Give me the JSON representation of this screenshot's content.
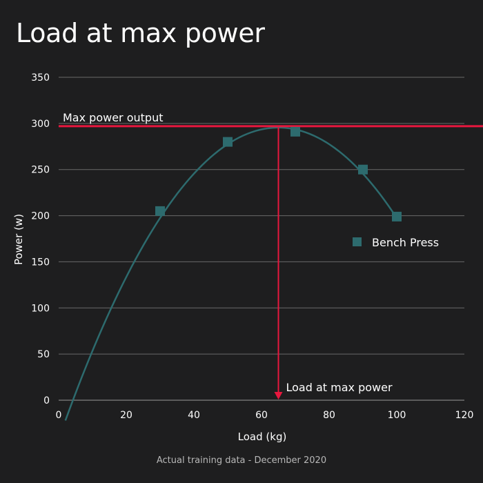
{
  "title": "Load at max power",
  "caption": "Actual training data - December 2020",
  "colors": {
    "background": "#1e1e1f",
    "series": "#2d6b6e",
    "highlight": "#e8173e",
    "grid": "#6a6a6a",
    "text": "#ffffff"
  },
  "chart_data": {
    "type": "scatter",
    "xlabel": "Load (kg)",
    "ylabel": "Power (w)",
    "xlim": [
      0,
      120
    ],
    "ylim": [
      0,
      350
    ],
    "x_ticks": [
      0,
      20,
      40,
      60,
      80,
      100,
      120
    ],
    "y_ticks": [
      0,
      50,
      100,
      150,
      200,
      250,
      300,
      350
    ],
    "grid": "horizontal",
    "legend_position": "right",
    "series": [
      {
        "name": "Bench Press",
        "x": [
          30,
          50,
          70,
          90,
          100
        ],
        "y": [
          205,
          280,
          291,
          250,
          199
        ],
        "trend": {
          "type": "quadratic",
          "x_range": [
            2,
            100
          ],
          "peak_x": 65,
          "peak_y": 295.5,
          "curvature": -0.08
        }
      }
    ],
    "annotations": [
      {
        "type": "hline",
        "value": 297,
        "label": "Max power output"
      },
      {
        "type": "vline",
        "value": 65,
        "label": "Load at max power"
      }
    ]
  }
}
